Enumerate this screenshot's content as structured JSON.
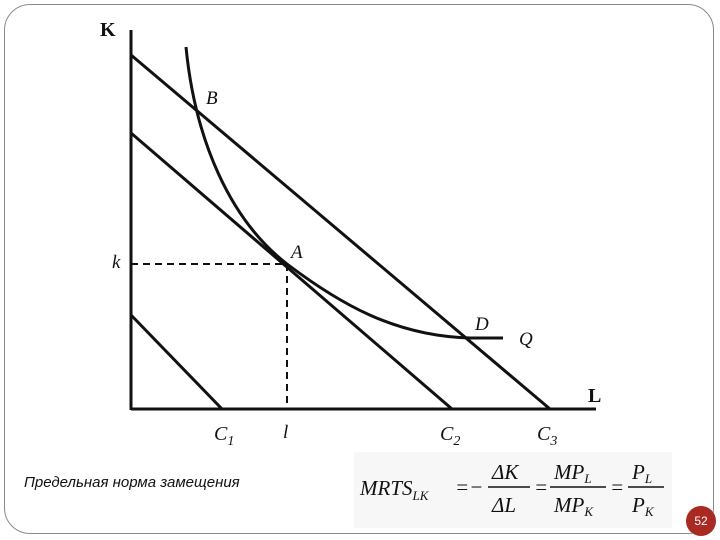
{
  "diagram": {
    "axis_y_label": "K",
    "axis_x_label": "L",
    "point_b": "B",
    "point_a": "A",
    "point_d": "D",
    "isoquant_label": "Q",
    "tick_k": "k",
    "tick_l": "l",
    "isocost_1": "C",
    "isocost_1_sub": "1",
    "isocost_2": "C",
    "isocost_2_sub": "2",
    "isocost_3": "C",
    "isocost_3_sub": "3"
  },
  "caption": "Предельная норма замещения",
  "formula": {
    "lhs": "MRTS",
    "lhs_sub": "LK",
    "eq1": "=−",
    "dk": "ΔK",
    "dl": "ΔL",
    "eq2": "=",
    "mpl": "MP",
    "mpl_sub": "L",
    "mpk": "MP",
    "mpk_sub": "K",
    "eq3": "=",
    "pl": "P",
    "pl_sub": "L",
    "pk": "P",
    "pk_sub": "K"
  },
  "slide_number": "52"
}
